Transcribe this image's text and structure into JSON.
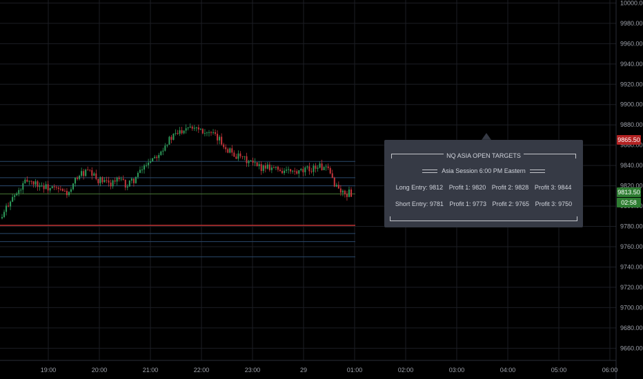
{
  "chart_data": {
    "type": "candlestick",
    "y_ticks": [
      "10000.00",
      "9980.00",
      "9960.00",
      "9940.00",
      "9920.00",
      "9900.00",
      "9880.00",
      "9860.00",
      "9840.00",
      "9820.00",
      "9800.00",
      "9780.00",
      "9760.00",
      "9740.00",
      "9720.00",
      "9700.00",
      "9680.00",
      "9660.00"
    ],
    "x_ticks": [
      "19:00",
      "20:00",
      "21:00",
      "22:00",
      "23:00",
      "29",
      "01:00",
      "02:00",
      "03:00",
      "04:00",
      "05:00",
      "06:00"
    ],
    "ylim": [
      9648,
      10003
    ],
    "grid": true,
    "price_path": [
      [
        0,
        9788
      ],
      [
        0.3,
        9806
      ],
      [
        0.6,
        9812
      ],
      [
        1,
        9826
      ],
      [
        1.4,
        9822
      ],
      [
        1.8,
        9818
      ],
      [
        2.2,
        9816
      ],
      [
        2.7,
        9812
      ],
      [
        3.0,
        9830
      ],
      [
        3.4,
        9834
      ],
      [
        3.8,
        9826
      ],
      [
        4.2,
        9822
      ],
      [
        4.6,
        9826
      ],
      [
        5.0,
        9820
      ],
      [
        5.4,
        9830
      ],
      [
        5.8,
        9844
      ],
      [
        6.2,
        9852
      ],
      [
        6.6,
        9864
      ],
      [
        7.0,
        9872
      ],
      [
        7.4,
        9880
      ],
      [
        7.8,
        9878
      ],
      [
        8.2,
        9872
      ],
      [
        8.6,
        9866
      ],
      [
        9.0,
        9856
      ],
      [
        9.4,
        9848
      ],
      [
        9.8,
        9844
      ],
      [
        10.2,
        9838
      ],
      [
        10.6,
        9840
      ],
      [
        11.0,
        9836
      ],
      [
        11.4,
        9834
      ],
      [
        11.8,
        9832
      ],
      [
        12.2,
        9836
      ],
      [
        12.6,
        9840
      ],
      [
        13.0,
        9834
      ],
      [
        13.3,
        9820
      ],
      [
        13.6,
        9812
      ],
      [
        13.9,
        9813
      ]
    ],
    "horizontal_levels": [
      {
        "price": 9844,
        "color": "#2a4a6e"
      },
      {
        "price": 9828,
        "color": "#2a4a6e"
      },
      {
        "price": 9820,
        "color": "#2a4a6e"
      },
      {
        "price": 9812,
        "color": "#4a7a35"
      },
      {
        "price": 9781,
        "color": "#b22f2f"
      },
      {
        "price": 9773,
        "color": "#2a4a6e"
      },
      {
        "price": 9765,
        "color": "#2a4a6e"
      },
      {
        "price": 9750,
        "color": "#2a4a6e"
      }
    ],
    "price_labels": [
      {
        "text": "9865.50",
        "price": 9865.5,
        "color": "#b22222"
      },
      {
        "text": "9813.50",
        "price": 9813.5,
        "color": "#2e7d32"
      },
      {
        "text": "02:58",
        "price": 9800,
        "color": "#2e7d32"
      }
    ],
    "colors": {
      "up": "#2e9c5b",
      "down": "#c8353b",
      "background": "#000000",
      "grid": "#1c1e24"
    }
  },
  "tooltip": {
    "title": "NQ ASIA OPEN TARGETS",
    "session": "Asia Session 6:00 PM Eastern",
    "long": {
      "entry": "Long Entry: 9812",
      "p1": "Profit 1: 9820",
      "p2": "Profit 2: 9828",
      "p3": "Profit 3: 9844"
    },
    "short": {
      "entry": "Short Entry: 9781",
      "p1": "Profit 1: 9773",
      "p2": "Profit 2: 9765",
      "p3": "Profit 3: 9750"
    }
  }
}
